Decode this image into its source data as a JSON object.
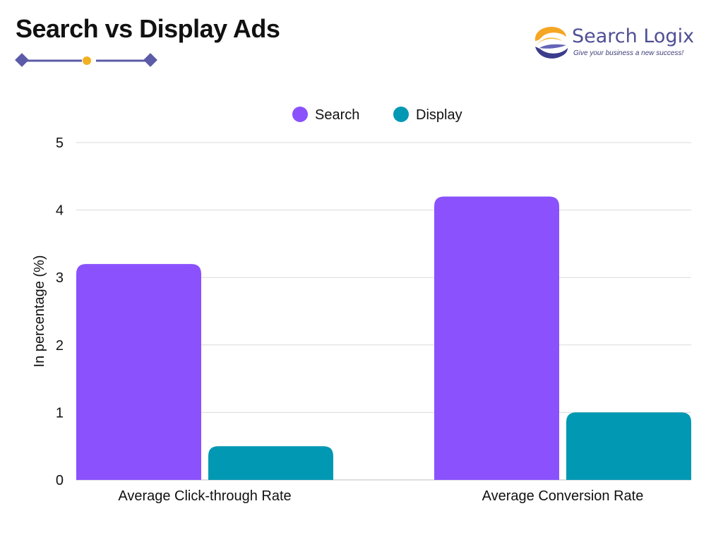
{
  "header": {
    "title": "Search vs Display Ads"
  },
  "logo": {
    "name": "Search Logix",
    "tagline": "Give your business a new success!"
  },
  "colors": {
    "search": "#8a51fd",
    "display": "#0098b3",
    "grid": "#d9d9d9",
    "deco_line": "#5b5ba8",
    "deco_dot": "#f2b01e"
  },
  "chart_data": {
    "type": "bar",
    "categories": [
      "Average Click-through Rate",
      "Average Conversion Rate"
    ],
    "series": [
      {
        "name": "Search",
        "values": [
          3.2,
          4.2
        ]
      },
      {
        "name": "Display",
        "values": [
          0.5,
          1.0
        ]
      }
    ],
    "title": "Search vs Display Ads",
    "xlabel": "",
    "ylabel": "In percentage (%)",
    "ylim": [
      0,
      5
    ],
    "yticks": [
      0,
      1,
      2,
      3,
      4,
      5
    ],
    "legend_position": "top-center",
    "grid": true
  }
}
